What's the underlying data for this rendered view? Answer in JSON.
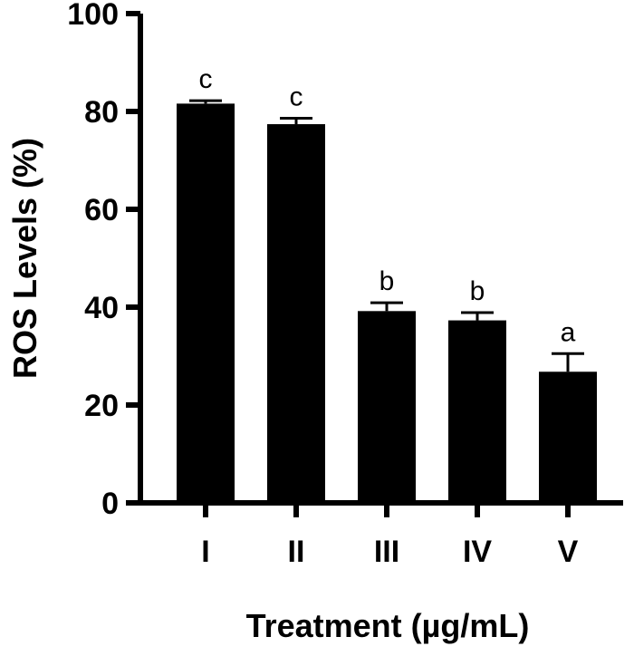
{
  "chart_data": {
    "type": "bar",
    "categories": [
      "I",
      "II",
      "III",
      "IV",
      "V"
    ],
    "values": [
      81.6,
      77.4,
      39.2,
      37.3,
      26.8
    ],
    "errors": [
      0.6,
      1.2,
      1.7,
      1.6,
      3.7
    ],
    "significance": [
      "c",
      "c",
      "b",
      "b",
      "a"
    ],
    "title": "",
    "xlabel": "Treatment (µg/mL)",
    "ylabel": "ROS Levels (%)",
    "ylim": [
      0,
      100
    ],
    "yticks": [
      0,
      20,
      40,
      60,
      80,
      100
    ],
    "grid": false,
    "bar_color": "#000000",
    "legend": "none"
  }
}
